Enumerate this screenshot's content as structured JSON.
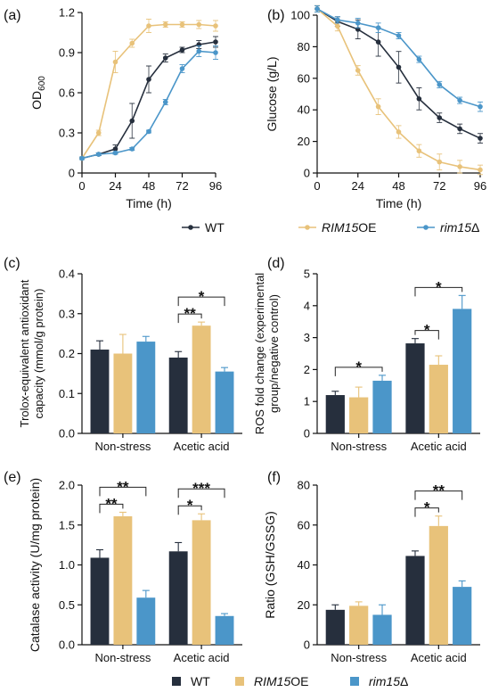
{
  "colors": {
    "wt": "#262f3d",
    "oe": "#e8c27a",
    "rim": "#4b96c9",
    "axis": "#111111"
  },
  "legend_top": {
    "items": [
      {
        "label": "WT",
        "style": "normal",
        "color": "#262f3d"
      },
      {
        "label": "RIM15",
        "suffix": "OE",
        "style": "italic",
        "color": "#e8c27a"
      },
      {
        "label": "rim15",
        "suffix": "Δ",
        "style": "italic",
        "color": "#4b96c9"
      }
    ]
  },
  "legend_bottom": {
    "items": [
      {
        "label": "WT",
        "style": "normal",
        "color": "#262f3d"
      },
      {
        "label": "RIM15",
        "suffix": "OE",
        "style": "italic",
        "color": "#e8c27a"
      },
      {
        "label": "rim15",
        "suffix": "Δ",
        "style": "italic",
        "color": "#4b96c9"
      }
    ]
  },
  "chart_data": [
    {
      "id": "a",
      "panel_label": "(a)",
      "type": "line",
      "xlabel": "Time (h)",
      "ylabel": "OD600",
      "ylabel_main": "OD",
      "ylabel_sub": "600",
      "xlim": [
        0,
        96
      ],
      "ylim": [
        0,
        1.2
      ],
      "xticks": [
        0,
        24,
        48,
        72,
        96
      ],
      "yticks": [
        0,
        0.3,
        0.6,
        0.9,
        1.2
      ],
      "ytick_labels": [
        "0",
        "0.3",
        "0.6",
        "0.9",
        "1.2"
      ],
      "series": [
        {
          "key": "wt",
          "x": [
            0,
            12,
            24,
            36,
            48,
            60,
            72,
            84,
            96
          ],
          "y": [
            0.11,
            0.14,
            0.18,
            0.39,
            0.7,
            0.86,
            0.92,
            0.96,
            0.98
          ],
          "err": [
            0.01,
            0.01,
            0.03,
            0.13,
            0.1,
            0.03,
            0.02,
            0.03,
            0.04
          ]
        },
        {
          "key": "oe",
          "x": [
            0,
            12,
            24,
            36,
            48,
            60,
            72,
            84,
            96
          ],
          "y": [
            0.11,
            0.3,
            0.83,
            0.97,
            1.1,
            1.11,
            1.11,
            1.11,
            1.1
          ],
          "err": [
            0.01,
            0.02,
            0.08,
            0.03,
            0.05,
            0.02,
            0.02,
            0.03,
            0.04
          ]
        },
        {
          "key": "rim",
          "x": [
            0,
            12,
            24,
            36,
            48,
            60,
            72,
            84,
            96
          ],
          "y": [
            0.11,
            0.14,
            0.15,
            0.18,
            0.31,
            0.53,
            0.78,
            0.91,
            0.9
          ],
          "err": [
            0.01,
            0.01,
            0.01,
            0.01,
            0.01,
            0.02,
            0.03,
            0.04,
            0.05
          ]
        }
      ]
    },
    {
      "id": "b",
      "panel_label": "(b)",
      "type": "line",
      "xlabel": "Time (h)",
      "ylabel": "Glucose (g/L)",
      "xlim": [
        0,
        96
      ],
      "ylim": [
        0,
        100
      ],
      "xticks": [
        0,
        24,
        48,
        72,
        96
      ],
      "yticks": [
        0,
        20,
        40,
        60,
        80,
        100
      ],
      "ytick_labels": [
        "0",
        "20",
        "40",
        "60",
        "80",
        "100"
      ],
      "series": [
        {
          "key": "wt",
          "x": [
            0,
            12,
            24,
            36,
            48,
            60,
            72,
            84,
            96
          ],
          "y": [
            104,
            96,
            91,
            83,
            67,
            47,
            35,
            28,
            22
          ],
          "err": [
            2,
            3,
            6,
            9,
            10,
            7,
            3,
            3,
            3
          ]
        },
        {
          "key": "oe",
          "x": [
            0,
            12,
            24,
            36,
            48,
            60,
            72,
            84,
            96
          ],
          "y": [
            104,
            93,
            65,
            42,
            26,
            14,
            7,
            4,
            2
          ],
          "err": [
            2,
            3,
            3,
            5,
            4,
            4,
            5,
            4,
            3
          ]
        },
        {
          "key": "rim",
          "x": [
            0,
            12,
            24,
            36,
            48,
            60,
            72,
            84,
            96
          ],
          "y": [
            104,
            97,
            95,
            92,
            87,
            72,
            56,
            46,
            42
          ],
          "err": [
            2,
            2,
            3,
            3,
            2,
            2,
            2,
            2,
            3
          ]
        }
      ]
    },
    {
      "id": "c",
      "panel_label": "(c)",
      "type": "bar",
      "ylabel": "Trolox-equivalent  antioxidant",
      "ylabel2": "capacity (mmol/g protein)",
      "ylim": [
        0,
        0.4
      ],
      "yticks": [
        0,
        0.1,
        0.2,
        0.3,
        0.4
      ],
      "ytick_labels": [
        "0.0",
        "0.1",
        "0.2",
        "0.3",
        "0.4"
      ],
      "categories": [
        "Non-stress",
        "Acetic acid"
      ],
      "series": [
        {
          "key": "wt",
          "values": [
            0.21,
            0.19
          ],
          "err": [
            0.022,
            0.015
          ]
        },
        {
          "key": "oe",
          "values": [
            0.2,
            0.27
          ],
          "err": [
            0.048,
            0.009
          ]
        },
        {
          "key": "rim",
          "values": [
            0.23,
            0.155
          ],
          "err": [
            0.013,
            0.01
          ]
        }
      ],
      "annotations": [
        {
          "group": 1,
          "from": 0,
          "to": 1,
          "label": "**",
          "level": 1
        },
        {
          "group": 1,
          "from": 0,
          "to": 2,
          "label": "*",
          "level": 2
        }
      ]
    },
    {
      "id": "d",
      "panel_label": "(d)",
      "type": "bar",
      "ylabel": "ROS fold change (experimental",
      "ylabel2": "group/negative control)",
      "ylim": [
        0,
        5
      ],
      "yticks": [
        0,
        1,
        2,
        3,
        4,
        5
      ],
      "ytick_labels": [
        "0",
        "1",
        "2",
        "3",
        "4",
        "5"
      ],
      "categories": [
        "Non-stress",
        "Acetic acid"
      ],
      "series": [
        {
          "key": "wt",
          "values": [
            1.2,
            2.82
          ],
          "err": [
            0.12,
            0.15
          ]
        },
        {
          "key": "oe",
          "values": [
            1.13,
            2.15
          ],
          "err": [
            0.32,
            0.28
          ]
        },
        {
          "key": "rim",
          "values": [
            1.65,
            3.9
          ],
          "err": [
            0.17,
            0.42
          ]
        }
      ],
      "annotations": [
        {
          "group": 0,
          "from": 0,
          "to": 2,
          "label": "*",
          "level": 1
        },
        {
          "group": 1,
          "from": 0,
          "to": 1,
          "label": "*",
          "level": 1
        },
        {
          "group": 1,
          "from": 0,
          "to": 2,
          "label": "*",
          "level": 2
        }
      ]
    },
    {
      "id": "e",
      "panel_label": "(e)",
      "type": "bar",
      "ylabel": "Catalase activity (U/mg protein)",
      "ylim": [
        0,
        2.0
      ],
      "yticks": [
        0,
        0.5,
        1.0,
        1.5,
        2.0
      ],
      "ytick_labels": [
        "0.0",
        "0.5",
        "1.0",
        "1.5",
        "2.0"
      ],
      "categories": [
        "Non-stress",
        "Acetic acid"
      ],
      "series": [
        {
          "key": "wt",
          "values": [
            1.09,
            1.17
          ],
          "err": [
            0.1,
            0.11
          ]
        },
        {
          "key": "oe",
          "values": [
            1.61,
            1.56
          ],
          "err": [
            0.05,
            0.08
          ]
        },
        {
          "key": "rim",
          "values": [
            0.59,
            0.36
          ],
          "err": [
            0.09,
            0.03
          ]
        }
      ],
      "annotations": [
        {
          "group": 0,
          "from": 0,
          "to": 1,
          "label": "**",
          "level": 1
        },
        {
          "group": 0,
          "from": 0,
          "to": 2,
          "label": "**",
          "level": 2
        },
        {
          "group": 1,
          "from": 0,
          "to": 1,
          "label": "*",
          "level": 1
        },
        {
          "group": 1,
          "from": 0,
          "to": 2,
          "label": "***",
          "level": 2
        }
      ]
    },
    {
      "id": "f",
      "panel_label": "(f)",
      "type": "bar",
      "ylabel": "Ratio (GSH/GSSG)",
      "ylim": [
        0,
        80
      ],
      "yticks": [
        0,
        20,
        40,
        60,
        80
      ],
      "ytick_labels": [
        "0",
        "20",
        "40",
        "60",
        "80"
      ],
      "categories": [
        "Non-stress",
        "Acetic acid"
      ],
      "series": [
        {
          "key": "wt",
          "values": [
            17.5,
            44.5
          ],
          "err": [
            2.5,
            2.5
          ]
        },
        {
          "key": "oe",
          "values": [
            19.5,
            59.5
          ],
          "err": [
            2.0,
            5.0
          ]
        },
        {
          "key": "rim",
          "values": [
            15.0,
            29.0
          ],
          "err": [
            5.0,
            3.0
          ]
        }
      ],
      "annotations": [
        {
          "group": 1,
          "from": 0,
          "to": 1,
          "label": "*",
          "level": 1
        },
        {
          "group": 1,
          "from": 0,
          "to": 2,
          "label": "**",
          "level": 2
        }
      ]
    }
  ]
}
